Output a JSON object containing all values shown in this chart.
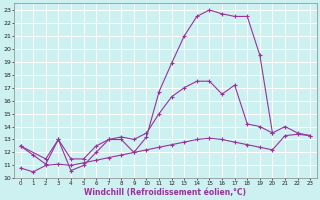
{
  "xlabel": "Windchill (Refroidissement éolien,°C)",
  "bg_color": "#cdf0f0",
  "line_color": "#993399",
  "grid_color": "#ffffff",
  "xlim": [
    -0.5,
    23.5
  ],
  "ylim": [
    10,
    23.5
  ],
  "xticks": [
    0,
    1,
    2,
    3,
    4,
    5,
    6,
    7,
    8,
    9,
    10,
    11,
    12,
    13,
    14,
    15,
    16,
    17,
    18,
    19,
    20,
    21,
    22,
    23
  ],
  "yticks": [
    10,
    11,
    12,
    13,
    14,
    15,
    16,
    17,
    18,
    19,
    20,
    21,
    22,
    23
  ],
  "lines": [
    {
      "x": [
        0,
        1,
        2,
        3,
        4,
        5,
        6,
        7,
        8,
        9,
        10,
        11,
        12,
        13,
        14,
        15,
        16,
        17,
        18,
        19,
        20
      ],
      "y": [
        12.5,
        11.8,
        11.1,
        13.0,
        10.6,
        11.0,
        12.0,
        13.0,
        13.0,
        12.0,
        13.2,
        16.7,
        18.9,
        21.0,
        22.5,
        23.0,
        22.7,
        22.5,
        22.5,
        19.5,
        13.5
      ]
    },
    {
      "x": [
        0,
        2,
        3,
        4,
        5,
        6,
        7,
        8,
        9,
        10,
        11,
        12,
        13,
        14,
        15,
        16,
        17,
        18,
        19,
        20,
        21,
        22,
        23
      ],
      "y": [
        12.5,
        11.5,
        13.0,
        11.5,
        11.5,
        12.5,
        13.0,
        13.2,
        13.0,
        13.5,
        15.0,
        16.3,
        17.0,
        17.5,
        17.5,
        16.5,
        17.2,
        14.2,
        14.0,
        13.5,
        14.0,
        13.5,
        13.3
      ]
    },
    {
      "x": [
        0,
        1,
        2,
        3,
        4,
        5,
        6,
        7,
        8,
        9,
        10,
        11,
        12,
        13,
        14,
        15,
        16,
        17,
        18,
        19,
        20,
        21,
        22,
        23
      ],
      "y": [
        10.8,
        10.5,
        11.0,
        11.1,
        11.0,
        11.2,
        11.4,
        11.6,
        11.8,
        12.0,
        12.2,
        12.4,
        12.6,
        12.8,
        13.0,
        13.1,
        13.0,
        12.8,
        12.6,
        12.4,
        12.2,
        13.3,
        13.4,
        13.3
      ]
    }
  ]
}
